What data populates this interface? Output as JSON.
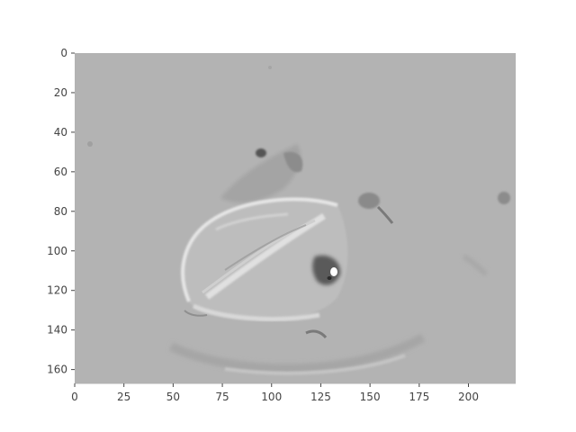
{
  "figure": {
    "kind": "grayscale image plot (difference image of an anatomical slice)",
    "background_color": "#ffffff",
    "image_fill_gray": "#b3b3b3",
    "axis_color": "#444444"
  },
  "axes": {
    "x": {
      "ticks": [
        {
          "value": 0,
          "label": "0"
        },
        {
          "value": 25,
          "label": "25"
        },
        {
          "value": 50,
          "label": "50"
        },
        {
          "value": 75,
          "label": "75"
        },
        {
          "value": 100,
          "label": "100"
        },
        {
          "value": 125,
          "label": "125"
        },
        {
          "value": 150,
          "label": "150"
        },
        {
          "value": 175,
          "label": "175"
        },
        {
          "value": 200,
          "label": "200"
        }
      ],
      "range": [
        0,
        224
      ]
    },
    "y": {
      "ticks": [
        {
          "value": 0,
          "label": "0"
        },
        {
          "value": 20,
          "label": "20"
        },
        {
          "value": 40,
          "label": "40"
        },
        {
          "value": 60,
          "label": "60"
        },
        {
          "value": 80,
          "label": "80"
        },
        {
          "value": 100,
          "label": "100"
        },
        {
          "value": 120,
          "label": "120"
        },
        {
          "value": 140,
          "label": "140"
        },
        {
          "value": 160,
          "label": "160"
        }
      ],
      "range": [
        0,
        167
      ],
      "inverted": true
    }
  }
}
